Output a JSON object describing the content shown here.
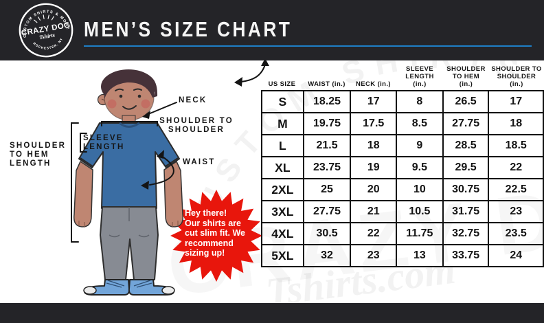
{
  "logo": {
    "arc_top": "CUSTOM SHIRTS & MORE",
    "name": "CRAZY DOG",
    "script": "Tshirts",
    "arc_bottom": "ROCHESTER, NY"
  },
  "header": {
    "title": "MEN’S SIZE CHART"
  },
  "colors": {
    "bar": "#242428",
    "accent_blue": "#1e7ec6",
    "star_red": "#e8160c",
    "shirt_blue": "#3a6da3",
    "pants_gray": "#878b93",
    "skin": "#bf8672",
    "hair_brown": "#463239",
    "shoe_blue": "#72a5d9"
  },
  "diagram": {
    "neck_label": "NECK",
    "shoulder_to_shoulder_label": "SHOULDER TO\nSHOULDER",
    "sleeve_label": "SLEEVE\nLENGTH",
    "hem_label": "SHOULDER\nTO HEM\nLENGTH",
    "waist_label": "WAIST"
  },
  "callout": {
    "lines": [
      "Hey there!",
      "Our shirts are",
      "cut slim fit. We",
      "recommend",
      "sizing up!"
    ]
  },
  "table": {
    "headers": [
      "US SIZE",
      "WAIST (in.)",
      "NECK (in.)",
      "SLEEVE\nLENGTH\n(in.)",
      "SHOULDER\nTO HEM\n(in.)",
      "SHOULDER TO\nSHOULDER\n(in.)"
    ],
    "rows": [
      [
        "S",
        "18.25",
        "17",
        "8",
        "26.5",
        "17"
      ],
      [
        "M",
        "19.75",
        "17.5",
        "8.5",
        "27.75",
        "18"
      ],
      [
        "L",
        "21.5",
        "18",
        "9",
        "28.5",
        "18.5"
      ],
      [
        "XL",
        "23.75",
        "19",
        "9.5",
        "29.5",
        "22"
      ],
      [
        "2XL",
        "25",
        "20",
        "10",
        "30.75",
        "22.5"
      ],
      [
        "3XL",
        "27.75",
        "21",
        "10.5",
        "31.75",
        "23"
      ],
      [
        "4XL",
        "30.5",
        "22",
        "11.75",
        "32.75",
        "23.5"
      ],
      [
        "5XL",
        "32",
        "23",
        "13",
        "33.75",
        "24"
      ]
    ]
  },
  "watermark": {
    "arc": "CUSTOM SHIRTS & MORE",
    "big": "CRAZY DOG",
    "script": "Tshirts.com"
  }
}
